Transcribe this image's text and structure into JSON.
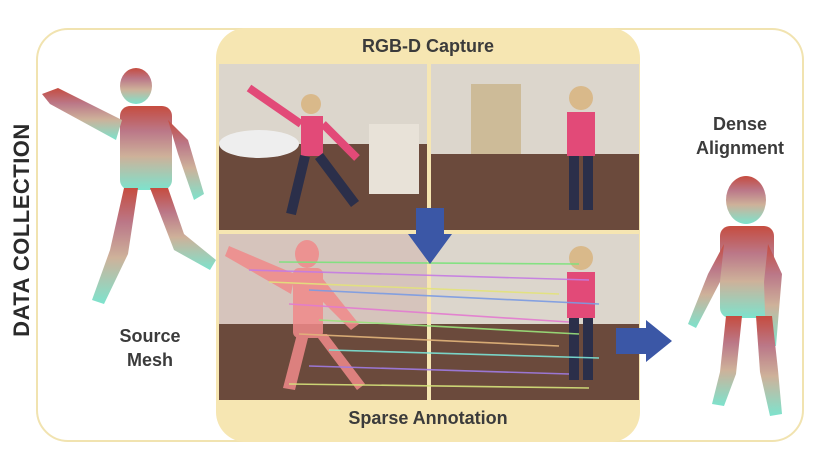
{
  "side_title": "DATA COLLECTION",
  "top_label": "RGB-D Capture",
  "bottom_label": "Sparse Annotation",
  "left_label_line1": "Source",
  "left_label_line2": "Mesh",
  "right_label_line1": "Dense",
  "right_label_line2": "Alignment",
  "colors": {
    "frame_border": "#f1e3b0",
    "panel_fill": "#f6e6b2",
    "arrow": "#3b57a6",
    "text": "#3b3b3b"
  },
  "icons": [
    "down-arrow-icon",
    "right-arrow-icon"
  ]
}
